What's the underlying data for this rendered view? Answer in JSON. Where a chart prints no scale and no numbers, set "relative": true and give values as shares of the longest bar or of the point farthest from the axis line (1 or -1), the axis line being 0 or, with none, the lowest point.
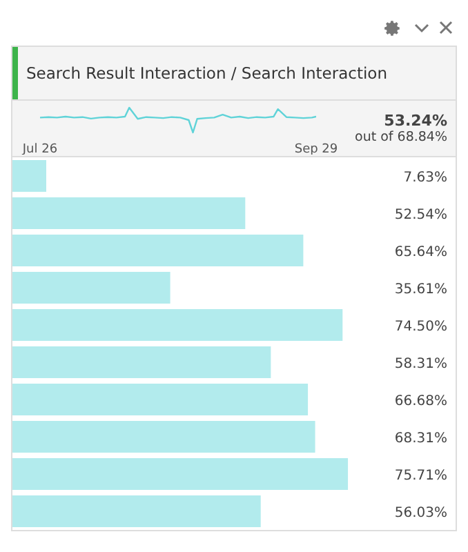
{
  "chart_data": [
    {
      "type": "line",
      "title": "Search Result Interaction / Search Interaction",
      "relative": true,
      "color": "#5fd3d8",
      "x": [
        "--07-26",
        "--07-28",
        "--07-30",
        "--08-01",
        "--08-03",
        "--08-05",
        "--08-07",
        "--08-09",
        "--08-11",
        "--08-13",
        "--08-15",
        "--08-16",
        "--08-18",
        "--08-20",
        "--08-22",
        "--08-24",
        "--08-26",
        "--08-28",
        "--08-30",
        "--08-31",
        "--09-01",
        "--09-03",
        "--09-05",
        "--09-07",
        "--09-09",
        "--09-11",
        "--09-13",
        "--09-15",
        "--09-17",
        "--09-19",
        "--09-20",
        "--09-22",
        "--09-24",
        "--09-26",
        "--09-28",
        "--09-29"
      ],
      "values": [
        0.6,
        0.62,
        0.6,
        0.64,
        0.6,
        0.62,
        0.56,
        0.6,
        0.62,
        0.6,
        0.64,
        1,
        0.55,
        0.62,
        0.6,
        0.58,
        0.62,
        0.6,
        0.5,
        0,
        0.55,
        0.58,
        0.6,
        0.72,
        0.6,
        0.64,
        0.58,
        0.62,
        0.6,
        0.64,
        0.94,
        0.62,
        0.6,
        0.58,
        0.6,
        0.64
      ],
      "xlim": [
        "--07-26",
        "--09-29"
      ],
      "xticks": [
        {
          "value": "--07-26",
          "label": "Jul 26"
        },
        {
          "value": "--09-29",
          "label": "Sep 29"
        }
      ],
      "tick_labels": "x",
      "annotations": [
        "53.24%",
        "out of 68.84%"
      ]
    },
    {
      "type": "bar",
      "orientation": "horizontal",
      "categories": [
        null,
        null,
        null,
        null,
        null,
        null,
        null,
        null,
        null,
        null
      ],
      "values": [
        7.63,
        52.54,
        65.64,
        35.61,
        74.5,
        58.31,
        66.68,
        68.31,
        75.71,
        56.03
      ],
      "value_labels": [
        "7.63%",
        "52.54%",
        "65.64%",
        "35.61%",
        "74.50%",
        "58.31%",
        "66.68%",
        "68.31%",
        "75.71%",
        "56.03%"
      ],
      "color": "#b2ebed",
      "xlim": [
        0,
        100
      ],
      "tick_labels": false
    }
  ]
}
